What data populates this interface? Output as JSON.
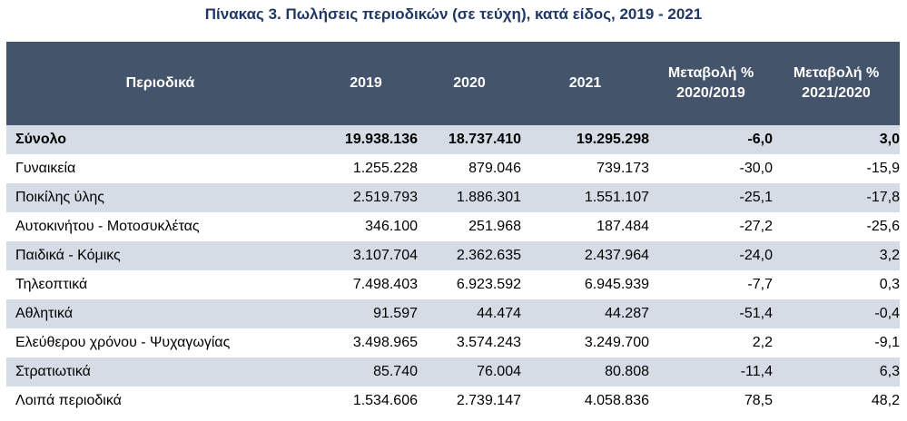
{
  "title": "Πίνακας 3. Πωλήσεις περιοδικών (σε τεύχη), κατά είδος, 2019 - 2021",
  "headers": {
    "category": "Περιοδικά",
    "y2019": "2019",
    "y2020": "2020",
    "y2021": "2021",
    "chg1_line1": "Μεταβολή %",
    "chg1_line2": "2020/2019",
    "chg2_line1": "Μεταβολή %",
    "chg2_line2": "2021/2020"
  },
  "rows": [
    {
      "name": "Σύνολο",
      "y2019": "19.938.136",
      "y2020": "18.737.410",
      "y2021": "19.295.298",
      "chg1": "-6,0",
      "chg2": "3,0"
    },
    {
      "name": "Γυναικεία",
      "y2019": "1.255.228",
      "y2020": "879.046",
      "y2021": "739.173",
      "chg1": "-30,0",
      "chg2": "-15,9"
    },
    {
      "name": "Ποικίλης ύλης",
      "y2019": "2.519.793",
      "y2020": "1.886.301",
      "y2021": "1.551.107",
      "chg1": "-25,1",
      "chg2": "-17,8"
    },
    {
      "name": "Αυτοκινήτου - Μοτοσυκλέτας",
      "y2019": "346.100",
      "y2020": "251.968",
      "y2021": "187.484",
      "chg1": "-27,2",
      "chg2": "-25,6"
    },
    {
      "name": "Παιδικά - Κόμικς",
      "y2019": "3.107.704",
      "y2020": "2.362.635",
      "y2021": "2.437.964",
      "chg1": "-24,0",
      "chg2": "3,2"
    },
    {
      "name": "Τηλεοπτικά",
      "y2019": "7.498.403",
      "y2020": "6.923.592",
      "y2021": "6.945.939",
      "chg1": "-7,7",
      "chg2": "0,3"
    },
    {
      "name": "Αθλητικά",
      "y2019": "91.597",
      "y2020": "44.474",
      "y2021": "44.287",
      "chg1": "-51,4",
      "chg2": "-0,4"
    },
    {
      "name": "Ελεύθερου χρόνου - Ψυχαγωγίας",
      "y2019": "3.498.965",
      "y2020": "3.574.243",
      "y2021": "3.249.700",
      "chg1": "2,2",
      "chg2": "-9,1"
    },
    {
      "name": "Στρατιωτικά",
      "y2019": "85.740",
      "y2020": "76.004",
      "y2021": "80.808",
      "chg1": "-11,4",
      "chg2": "6,3"
    },
    {
      "name": "Λοιπά περιοδικά",
      "y2019": "1.534.606",
      "y2020": "2.739.147",
      "y2021": "4.058.836",
      "chg1": "78,5",
      "chg2": "48,2"
    }
  ]
}
